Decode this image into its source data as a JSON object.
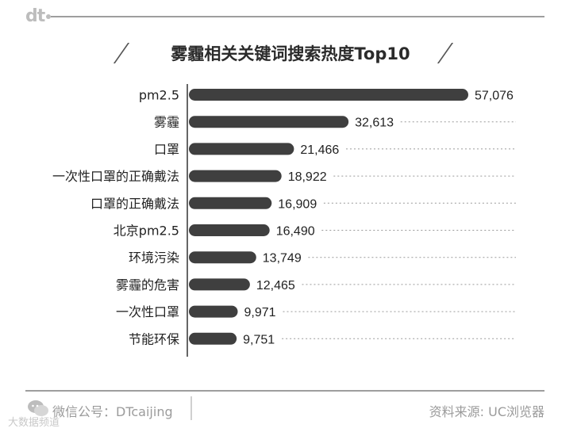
{
  "brand": {
    "logo_text": "dt"
  },
  "title": "雾霾相关关键词搜索热度Top10",
  "footer": {
    "wechat": "微信公号：DTcaijing",
    "source": "资料来源: UC浏览器",
    "watermark": "大数据频道"
  },
  "chart_data": {
    "type": "bar",
    "orientation": "horizontal",
    "title": "雾霾相关关键词搜索热度Top10",
    "categories": [
      "pm2.5",
      "雾霾",
      "口罩",
      "一次性口罩的正确戴法",
      "口罩的正确戴法",
      "北京pm2.5",
      "环境污染",
      "雾霾的危害",
      "一次性口罩",
      "节能环保"
    ],
    "values": [
      57076,
      32613,
      21466,
      18922,
      16909,
      16490,
      13749,
      12465,
      9971,
      9751
    ],
    "value_labels": [
      "57,076",
      "32,613",
      "21,466",
      "18,922",
      "16,909",
      "16,490",
      "13,749",
      "12,465",
      "9,971",
      "9,751"
    ],
    "xlim": [
      0,
      57076
    ],
    "bar_color": "#3f3f3f",
    "grid": "dotted-leaders"
  }
}
